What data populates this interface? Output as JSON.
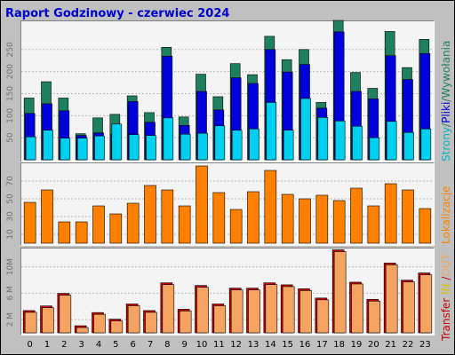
{
  "title": "Raport Godzinowy -  czerwiec 2024",
  "colors": {
    "background": "#C0C0C0",
    "panel": "#F4F4F4",
    "title": "#0000CC",
    "hits": "#1F8060",
    "files": "#0000DD",
    "pages": "#00D0F0",
    "visits": "#FF8000",
    "kbytes": "#F4A460",
    "kbytes_rear": "#CC0000",
    "grid": "#B8B8B8"
  },
  "legend": {
    "top": [
      {
        "text": "Strony",
        "color": "#00B8C8"
      },
      {
        "text": "/",
        "color": "#1F8060"
      },
      {
        "text": "Pliki",
        "color": "#0000DD"
      },
      {
        "text": "/",
        "color": "#1F8060"
      },
      {
        "text": "Wywołania",
        "color": "#1F8060"
      }
    ],
    "middle": [
      {
        "text": "Lokalizacje",
        "color": "#FF8000"
      }
    ],
    "bottom": [
      {
        "text": "Transfer",
        "color": "#CC0000"
      },
      {
        "text": " IN",
        "color": "#E0C000"
      },
      {
        "text": " /",
        "color": "#CC0000"
      },
      {
        "text": "OUT",
        "color": "#F4A460"
      }
    ]
  },
  "chart_data": [
    {
      "type": "bar",
      "panel": "requests",
      "categories": [
        "0",
        "1",
        "2",
        "3",
        "4",
        "5",
        "6",
        "7",
        "8",
        "9",
        "10",
        "11",
        "12",
        "13",
        "14",
        "15",
        "16",
        "17",
        "18",
        "19",
        "20",
        "21",
        "22",
        "23"
      ],
      "ylim": [
        0,
        310
      ],
      "yticks": [
        "50",
        "100",
        "150",
        "200",
        "250"
      ],
      "series": [
        {
          "name": "Wywołania",
          "values": [
            140,
            177,
            140,
            59,
            95,
            103,
            145,
            107,
            255,
            97,
            194,
            143,
            218,
            193,
            280,
            227,
            250,
            130,
            316,
            198,
            162,
            291,
            209,
            273
          ]
        },
        {
          "name": "Pliki",
          "values": [
            105,
            127,
            111,
            55,
            61,
            58,
            132,
            85,
            235,
            78,
            155,
            113,
            186,
            173,
            250,
            199,
            216,
            117,
            290,
            155,
            138,
            236,
            182,
            241
          ]
        },
        {
          "name": "Strony",
          "values": [
            52,
            67,
            49,
            49,
            54,
            81,
            57,
            55,
            95,
            58,
            60,
            77,
            67,
            70,
            130,
            67,
            139,
            96,
            88,
            76,
            50,
            87,
            62,
            70
          ]
        }
      ]
    },
    {
      "type": "bar",
      "panel": "visits",
      "categories": [
        "0",
        "1",
        "2",
        "3",
        "4",
        "5",
        "6",
        "7",
        "8",
        "9",
        "10",
        "11",
        "12",
        "13",
        "14",
        "15",
        "16",
        "17",
        "18",
        "19",
        "20",
        "21",
        "22",
        "23"
      ],
      "ylim": [
        0,
        88
      ],
      "yticks": [
        "10",
        "30",
        "50",
        "70"
      ],
      "series": [
        {
          "name": "Lokalizacje",
          "values": [
            46,
            60,
            24,
            24,
            42,
            33,
            45,
            65,
            60,
            42,
            87,
            57,
            38,
            58,
            82,
            55,
            50,
            54,
            48,
            62,
            42,
            67,
            60,
            39
          ]
        }
      ]
    },
    {
      "type": "bar",
      "panel": "kbytes",
      "categories": [
        "0",
        "1",
        "2",
        "3",
        "4",
        "5",
        "6",
        "7",
        "8",
        "9",
        "10",
        "11",
        "12",
        "13",
        "14",
        "15",
        "16",
        "17",
        "18",
        "19",
        "20",
        "21",
        "22",
        "23"
      ],
      "ylim": [
        0,
        12.5
      ],
      "yticks": [
        "2 M",
        "6 M",
        "10M"
      ],
      "series": [
        {
          "name": "Transfer",
          "values": [
            3.1,
            3.8,
            5.7,
            0.8,
            2.8,
            1.8,
            4.1,
            3.1,
            7.3,
            3.3,
            6.9,
            4.1,
            6.5,
            6.5,
            7.3,
            7.0,
            6.4,
            5.0,
            12.3,
            7.4,
            4.8,
            10.3,
            7.7,
            8.8
          ]
        }
      ]
    }
  ]
}
